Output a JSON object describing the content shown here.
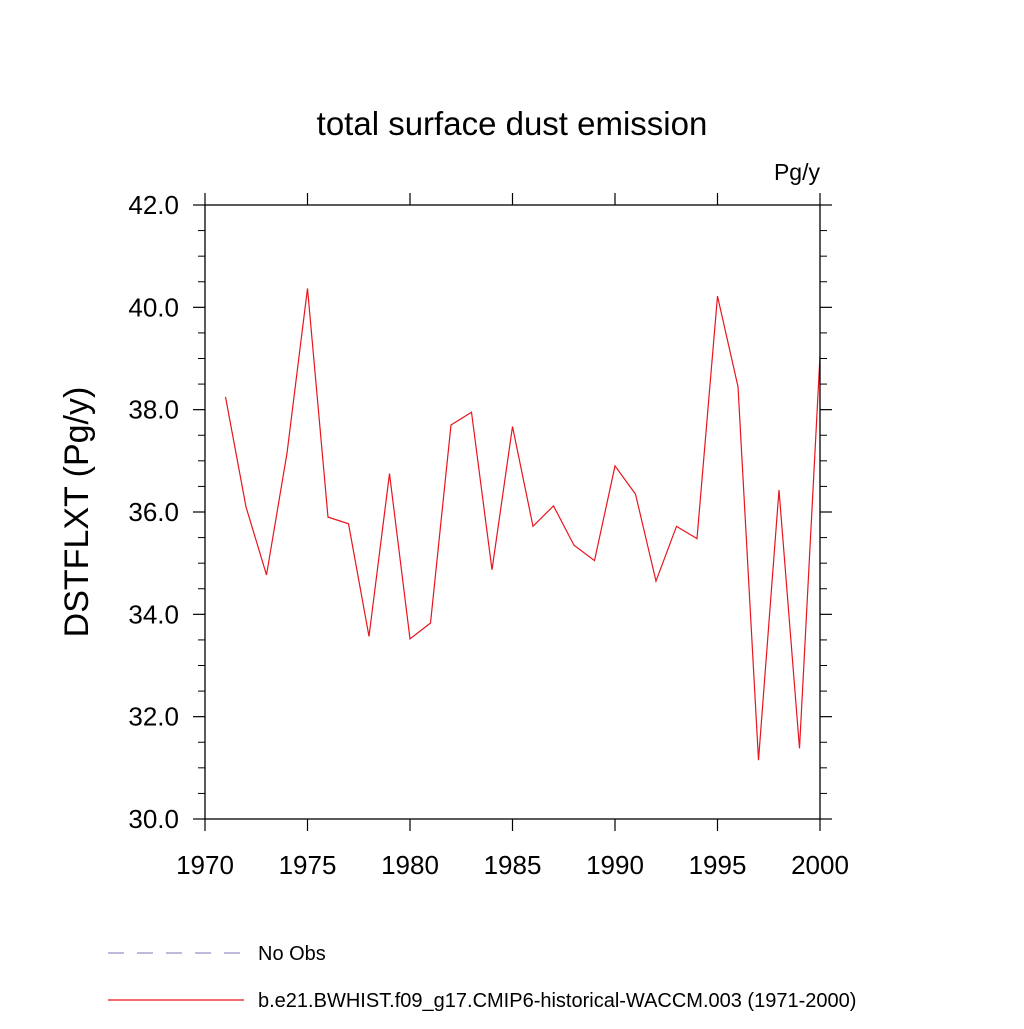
{
  "chart_data": {
    "type": "line",
    "title": "total surface dust emission",
    "units": "Pg/y",
    "xlabel": "",
    "ylabel": "DSTFLXT  (Pg/y)",
    "xlim": [
      1970,
      2000
    ],
    "ylim": [
      30.0,
      42.0
    ],
    "xticks": [
      1970,
      1975,
      1980,
      1985,
      1990,
      1995,
      2000
    ],
    "xtick_labels": [
      "1970",
      "1975",
      "1980",
      "1985",
      "1990",
      "1995",
      "2000"
    ],
    "yticks": [
      30.0,
      32.0,
      34.0,
      36.0,
      38.0,
      40.0,
      42.0
    ],
    "ytick_labels": [
      "30.0",
      "32.0",
      "34.0",
      "36.0",
      "38.0",
      "40.0",
      "42.0"
    ],
    "grid": false,
    "series": [
      {
        "name": "b.e21.BWHIST.f09_g17.CMIP6-historical-WACCM.003 (1971-2000)",
        "color": "#e8141e",
        "style": "solid",
        "x": [
          1971,
          1972,
          1973,
          1974,
          1975,
          1976,
          1977,
          1978,
          1979,
          1980,
          1981,
          1982,
          1983,
          1984,
          1985,
          1986,
          1987,
          1988,
          1989,
          1990,
          1991,
          1992,
          1993,
          1994,
          1995,
          1996,
          1997,
          1998,
          1999,
          2000
        ],
        "values": [
          38.25,
          36.1,
          34.77,
          37.15,
          40.37,
          35.9,
          35.77,
          33.57,
          36.75,
          33.52,
          33.83,
          37.7,
          37.95,
          34.87,
          37.67,
          35.72,
          36.12,
          35.35,
          35.05,
          36.9,
          36.35,
          34.65,
          35.72,
          35.48,
          40.22,
          38.45,
          31.15,
          36.43,
          31.38,
          39.05
        ]
      }
    ],
    "legend": {
      "position": "bottom-left",
      "entries": [
        {
          "label": "No Obs",
          "color": "#9b8fc8",
          "style": "dashed"
        },
        {
          "label": "b.e21.BWHIST.f09_g17.CMIP6-historical-WACCM.003 (1971-2000)",
          "color": "#e8141e",
          "style": "solid"
        }
      ]
    }
  }
}
